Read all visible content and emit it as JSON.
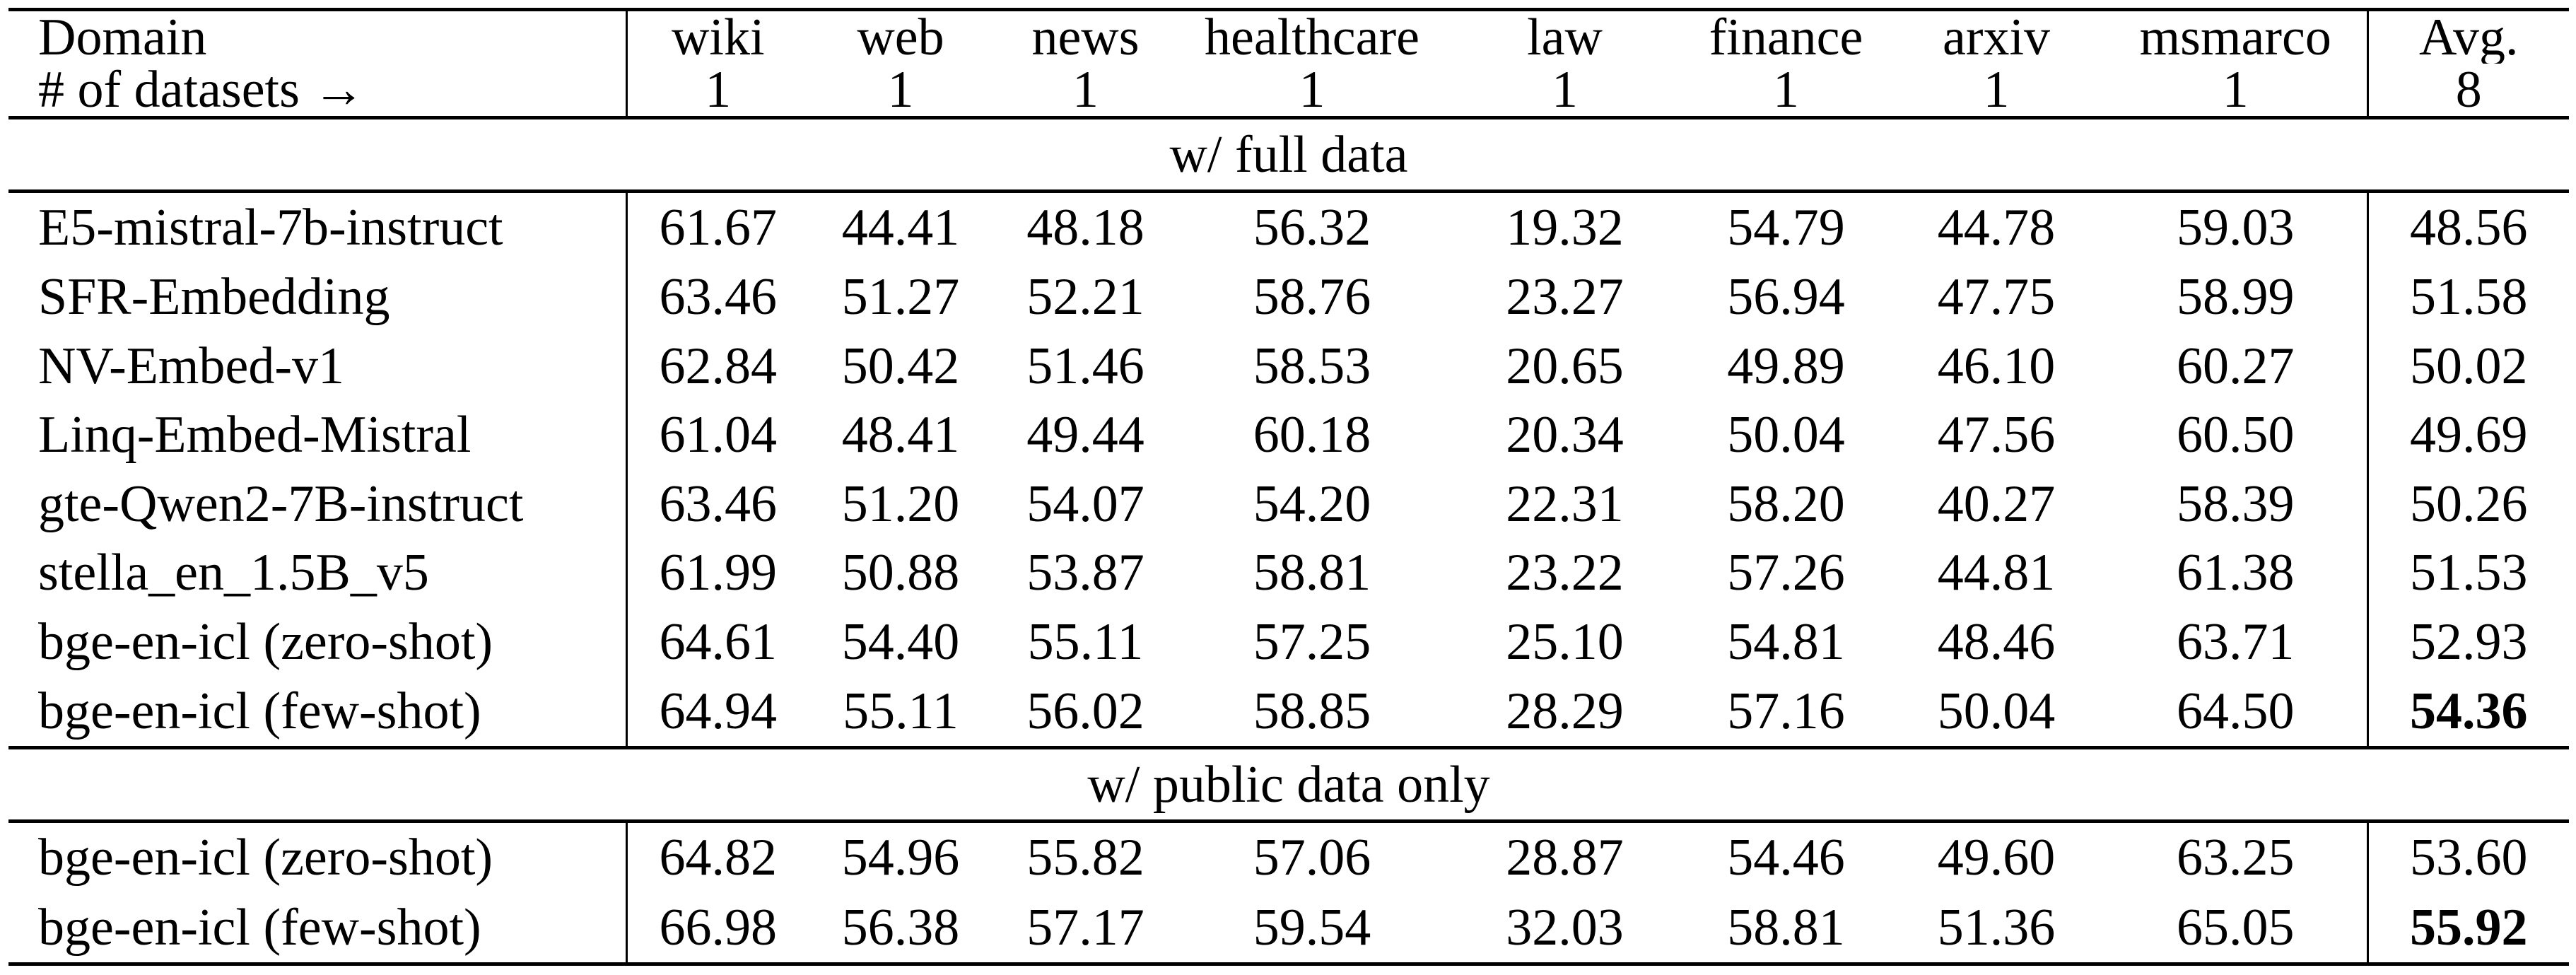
{
  "table": {
    "header": {
      "domain_label": "Domain",
      "datasets_label": "# of datasets →",
      "columns": [
        "wiki",
        "web",
        "news",
        "healthcare",
        "law",
        "finance",
        "arxiv",
        "msmarco"
      ],
      "counts": [
        "1",
        "1",
        "1",
        "1",
        "1",
        "1",
        "1",
        "1"
      ],
      "avg_label": "Avg.",
      "avg_count": "8"
    },
    "sections": [
      {
        "title": "w/ full data",
        "rows": [
          {
            "model": "E5-mistral-7b-instruct",
            "values": [
              "61.67",
              "44.41",
              "48.18",
              "56.32",
              "19.32",
              "54.79",
              "44.78",
              "59.03"
            ],
            "avg": "48.56",
            "avg_bold": false
          },
          {
            "model": "SFR-Embedding",
            "values": [
              "63.46",
              "51.27",
              "52.21",
              "58.76",
              "23.27",
              "56.94",
              "47.75",
              "58.99"
            ],
            "avg": "51.58",
            "avg_bold": false
          },
          {
            "model": "NV-Embed-v1",
            "values": [
              "62.84",
              "50.42",
              "51.46",
              "58.53",
              "20.65",
              "49.89",
              "46.10",
              "60.27"
            ],
            "avg": "50.02",
            "avg_bold": false
          },
          {
            "model": "Linq-Embed-Mistral",
            "values": [
              "61.04",
              "48.41",
              "49.44",
              "60.18",
              "20.34",
              "50.04",
              "47.56",
              "60.50"
            ],
            "avg": "49.69",
            "avg_bold": false
          },
          {
            "model": "gte-Qwen2-7B-instruct",
            "values": [
              "63.46",
              "51.20",
              "54.07",
              "54.20",
              "22.31",
              "58.20",
              "40.27",
              "58.39"
            ],
            "avg": "50.26",
            "avg_bold": false
          },
          {
            "model": "stella_en_1.5B_v5",
            "values": [
              "61.99",
              "50.88",
              "53.87",
              "58.81",
              "23.22",
              "57.26",
              "44.81",
              "61.38"
            ],
            "avg": "51.53",
            "avg_bold": false
          },
          {
            "model": "bge-en-icl (zero-shot)",
            "values": [
              "64.61",
              "54.40",
              "55.11",
              "57.25",
              "25.10",
              "54.81",
              "48.46",
              "63.71"
            ],
            "avg": "52.93",
            "avg_bold": false
          },
          {
            "model": "bge-en-icl (few-shot)",
            "values": [
              "64.94",
              "55.11",
              "56.02",
              "58.85",
              "28.29",
              "57.16",
              "50.04",
              "64.50"
            ],
            "avg": "54.36",
            "avg_bold": true
          }
        ]
      },
      {
        "title": "w/ public data only",
        "rows": [
          {
            "model": "bge-en-icl (zero-shot)",
            "values": [
              "64.82",
              "54.96",
              "55.82",
              "57.06",
              "28.87",
              "54.46",
              "49.60",
              "63.25"
            ],
            "avg": "53.60",
            "avg_bold": false
          },
          {
            "model": "bge-en-icl (few-shot)",
            "values": [
              "66.98",
              "56.38",
              "57.17",
              "59.54",
              "32.03",
              "58.81",
              "51.36",
              "65.05"
            ],
            "avg": "55.92",
            "avg_bold": true
          }
        ]
      }
    ]
  }
}
